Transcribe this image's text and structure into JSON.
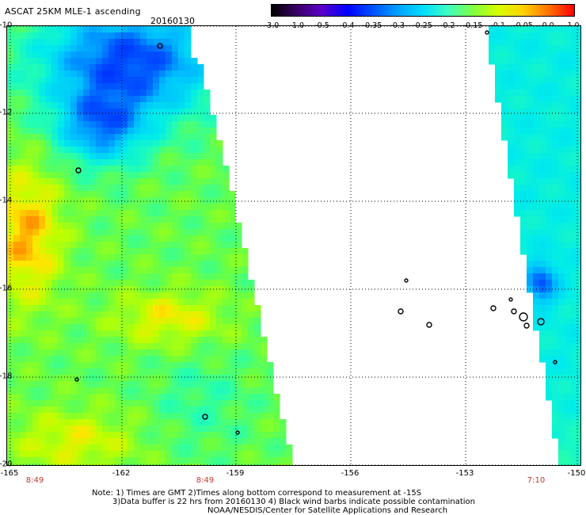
{
  "title": "ASCAT 25KM MLE-1 ascending",
  "date": "20160130",
  "colorbar": {
    "labels": [
      "-3.0",
      "-1.0",
      "-0.5",
      "-0.4",
      "-0.35",
      "-0.3",
      "-0.25",
      "-0.2",
      "-0.15",
      "-0.1",
      "-0.05",
      "0.0",
      "1.0"
    ],
    "colors": [
      "#000000",
      "#3a0066",
      "#5b00c8",
      "#0000ff",
      "#0050ff",
      "#00a0ff",
      "#00ddff",
      "#40ffc0",
      "#80ff40",
      "#d8ff00",
      "#ffd000",
      "#ff7000",
      "#ff0000"
    ]
  },
  "map": {
    "lat_labels": [
      "-10",
      "-12",
      "-14",
      "-16",
      "-18",
      "-20"
    ],
    "lon_labels": [
      "-165",
      "-162",
      "-159",
      "-156",
      "-153",
      "-150"
    ],
    "time_labels": [
      "8:49",
      "8:49",
      "7:10"
    ]
  },
  "notes": {
    "line1": "Note: 1) Times are GMT 2)Times along bottom correspond to measurement at -15S",
    "line2": "3)Data buffer is 22 hrs from 20160130 4) Black wind barbs indicate possible contamination",
    "line3": "NOAA/NESDIS/Center for Satellite Applications and Research"
  }
}
